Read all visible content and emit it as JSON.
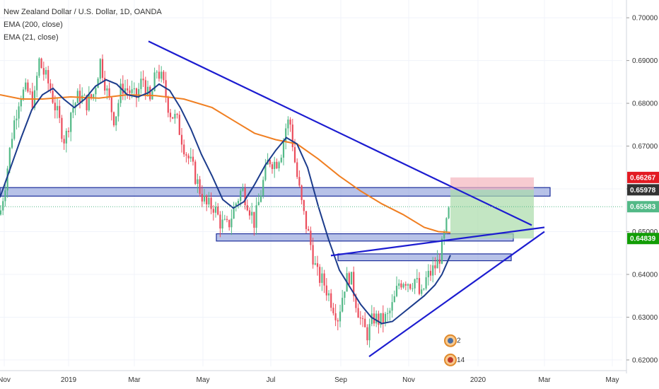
{
  "legend": {
    "title": "New Zealand Dollar / U.S. Dollar, 1D, OANDA",
    "ema200": "EMA (200, close)",
    "ema21": "EMA (21, close)"
  },
  "colors": {
    "up": "#53b987",
    "down": "#eb4d5c",
    "ema200": "#f07f22",
    "ema21": "#1c3c8c",
    "trendline": "#1c1cd0",
    "zone_fill": "#7b8fd6",
    "zone_stroke": "#1c2e9c",
    "target_zone": "#a9dca9",
    "stop_zone": "#f4b5bd",
    "badge_red": "#e31b23",
    "badge_dark": "#333333",
    "badge_green": "#129d06",
    "badge_green_light": "#53b987"
  },
  "chart_data": {
    "type": "candlestick",
    "title": "New Zealand Dollar / U.S. Dollar, 1D, OANDA",
    "x_tick_labels": [
      "Nov",
      "2019",
      "Mar",
      "May",
      "Jul",
      "Sep",
      "Nov",
      "2020",
      "Mar",
      "May"
    ],
    "y_tick_labels": [
      "0.70000",
      "0.69000",
      "0.68000",
      "0.67000",
      "0.66000",
      "0.65000",
      "0.64000",
      "0.63000",
      "0.62000"
    ],
    "ylim": [
      0.6185,
      0.7025
    ],
    "price_labels": [
      {
        "value": 0.66267,
        "text": "0.66267",
        "style": "red"
      },
      {
        "value": 0.65978,
        "text": "0.65978",
        "style": "dark"
      },
      {
        "value": 0.65583,
        "text": "0.65583",
        "style": "green_light"
      },
      {
        "value": 0.64839,
        "text": "0.64839",
        "style": "green"
      }
    ],
    "series": [
      {
        "name": "EMA (200, close)",
        "type": "line",
        "points": [
          [
            0,
            0.682
          ],
          [
            30,
            0.681
          ],
          [
            60,
            0.681
          ],
          [
            100,
            0.6815
          ],
          [
            140,
            0.6812
          ],
          [
            180,
            0.682
          ],
          [
            220,
            0.6818
          ],
          [
            260,
            0.681
          ],
          [
            300,
            0.679
          ],
          [
            330,
            0.676
          ],
          [
            360,
            0.673
          ],
          [
            390,
            0.6715
          ],
          [
            420,
            0.6705
          ],
          [
            450,
            0.667
          ],
          [
            480,
            0.663
          ],
          [
            510,
            0.6595
          ],
          [
            540,
            0.6565
          ],
          [
            570,
            0.654
          ],
          [
            600,
            0.651
          ],
          [
            620,
            0.65
          ],
          [
            637,
            0.6498
          ]
        ]
      },
      {
        "name": "EMA (21, close)",
        "type": "line",
        "points": [
          [
            0,
            0.658
          ],
          [
            15,
            0.665
          ],
          [
            30,
            0.672
          ],
          [
            45,
            0.6785
          ],
          [
            60,
            0.682
          ],
          [
            75,
            0.6835
          ],
          [
            90,
            0.681
          ],
          [
            105,
            0.679
          ],
          [
            120,
            0.681
          ],
          [
            135,
            0.684
          ],
          [
            150,
            0.6855
          ],
          [
            165,
            0.6845
          ],
          [
            180,
            0.682
          ],
          [
            195,
            0.6815
          ],
          [
            210,
            0.6825
          ],
          [
            225,
            0.6845
          ],
          [
            240,
            0.683
          ],
          [
            255,
            0.679
          ],
          [
            270,
            0.674
          ],
          [
            285,
            0.668
          ],
          [
            300,
            0.663
          ],
          [
            315,
            0.6575
          ],
          [
            330,
            0.6555
          ],
          [
            345,
            0.657
          ],
          [
            360,
            0.661
          ],
          [
            375,
            0.6655
          ],
          [
            390,
            0.669
          ],
          [
            405,
            0.672
          ],
          [
            420,
            0.6705
          ],
          [
            435,
            0.665
          ],
          [
            450,
            0.656
          ],
          [
            465,
            0.648
          ],
          [
            480,
            0.641
          ],
          [
            495,
            0.637
          ],
          [
            510,
            0.633
          ],
          [
            525,
            0.63
          ],
          [
            540,
            0.6285
          ],
          [
            555,
            0.629
          ],
          [
            570,
            0.631
          ],
          [
            585,
            0.633
          ],
          [
            600,
            0.635
          ],
          [
            615,
            0.6375
          ],
          [
            625,
            0.64
          ],
          [
            637,
            0.6445
          ]
        ]
      }
    ],
    "candle_path": [
      [
        0,
        0.654
      ],
      [
        8,
        0.662
      ],
      [
        18,
        0.674
      ],
      [
        28,
        0.682
      ],
      [
        38,
        0.683
      ],
      [
        48,
        0.68
      ],
      [
        55,
        0.69
      ],
      [
        62,
        0.687
      ],
      [
        70,
        0.684
      ],
      [
        80,
        0.678
      ],
      [
        92,
        0.671
      ],
      [
        100,
        0.678
      ],
      [
        112,
        0.682
      ],
      [
        122,
        0.68
      ],
      [
        132,
        0.682
      ],
      [
        142,
        0.69
      ],
      [
        152,
        0.682
      ],
      [
        162,
        0.676
      ],
      [
        172,
        0.684
      ],
      [
        182,
        0.683
      ],
      [
        192,
        0.681
      ],
      [
        202,
        0.686
      ],
      [
        212,
        0.68
      ],
      [
        222,
        0.688
      ],
      [
        230,
        0.685
      ],
      [
        240,
        0.678
      ],
      [
        250,
        0.676
      ],
      [
        262,
        0.669
      ],
      [
        272,
        0.665
      ],
      [
        282,
        0.66
      ],
      [
        292,
        0.656
      ],
      [
        302,
        0.656
      ],
      [
        312,
        0.652
      ],
      [
        322,
        0.651
      ],
      [
        332,
        0.656
      ],
      [
        342,
        0.66
      ],
      [
        350,
        0.657
      ],
      [
        360,
        0.652
      ],
      [
        370,
        0.66
      ],
      [
        380,
        0.667
      ],
      [
        390,
        0.666
      ],
      [
        398,
        0.669
      ],
      [
        405,
        0.675
      ],
      [
        410,
        0.676
      ],
      [
        418,
        0.665
      ],
      [
        428,
        0.655
      ],
      [
        438,
        0.648
      ],
      [
        448,
        0.64
      ],
      [
        458,
        0.638
      ],
      [
        468,
        0.634
      ],
      [
        478,
        0.63
      ],
      [
        488,
        0.638
      ],
      [
        495,
        0.64
      ],
      [
        503,
        0.634
      ],
      [
        512,
        0.628
      ],
      [
        520,
        0.626
      ],
      [
        528,
        0.63
      ],
      [
        538,
        0.629
      ],
      [
        548,
        0.63
      ],
      [
        556,
        0.633
      ],
      [
        564,
        0.638
      ],
      [
        572,
        0.639
      ],
      [
        580,
        0.638
      ],
      [
        588,
        0.639
      ],
      [
        595,
        0.634
      ],
      [
        603,
        0.639
      ],
      [
        612,
        0.641
      ],
      [
        620,
        0.643
      ],
      [
        626,
        0.647
      ],
      [
        630,
        0.65
      ],
      [
        634,
        0.654
      ],
      [
        637,
        0.6558
      ]
    ],
    "trendlines": [
      {
        "from": [
          210,
          0.6945
        ],
        "to": [
          752,
          0.6515
        ]
      },
      {
        "from": [
          468,
          0.6444
        ],
        "to": [
          770,
          0.651
        ]
      },
      {
        "from": [
          522,
          0.6208
        ],
        "to": [
          770,
          0.65
        ]
      }
    ],
    "zones": [
      {
        "x1": 0,
        "x2": 778,
        "y_top": 0.6603,
        "y_bottom": 0.6583
      },
      {
        "x1": 306,
        "x2": 726,
        "y_top": 0.6495,
        "y_bottom": 0.6478
      },
      {
        "x1": 478,
        "x2": 723,
        "y_top": 0.6448,
        "y_bottom": 0.6432
      }
    ],
    "position": {
      "x1": 637,
      "x2": 755,
      "entry": 0.6598,
      "stop": 0.66267,
      "target": 0.64839
    },
    "current_price": 0.65583,
    "event_icons": [
      {
        "x": 637,
        "value": 0.6245,
        "label": "2"
      },
      {
        "x": 637,
        "value": 0.62,
        "label": "14"
      }
    ]
  }
}
